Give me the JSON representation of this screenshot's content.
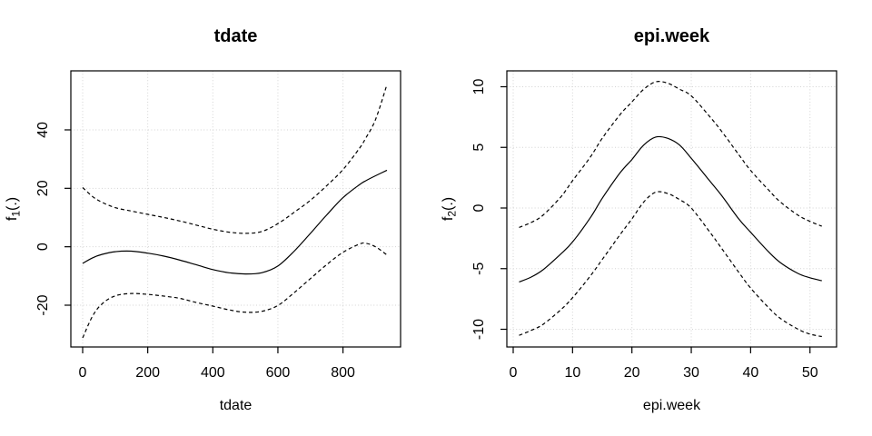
{
  "figure": {
    "background_color": "#ffffff",
    "line_color": "#000000",
    "grid_color": "#d3d3d3",
    "description_panels": 2
  },
  "chart_data": [
    {
      "type": "line",
      "title": "tdate",
      "xlabel": "tdate",
      "ylabel": "f1(.)",
      "ylabel_parts": {
        "f": "f",
        "sub": "1",
        "args": "(.)"
      },
      "xlim": [
        -36.3,
        977
      ],
      "ylim": [
        -34.3,
        60.2
      ],
      "xticks": [
        0,
        200,
        400,
        600,
        800
      ],
      "yticks": [
        -20,
        0,
        20,
        40
      ],
      "grid": true,
      "legend": "none",
      "series": [
        {
          "name": "fit",
          "style": "solid",
          "x": [
            0,
            30,
            60,
            100,
            150,
            200,
            250,
            300,
            350,
            400,
            450,
            500,
            550,
            600,
            650,
            700,
            750,
            800,
            850,
            870,
            900,
            935
          ],
          "y": [
            -5.7,
            -3.8,
            -2.6,
            -1.7,
            -1.5,
            -2.2,
            -3.2,
            -4.6,
            -6.2,
            -7.8,
            -8.9,
            -9.3,
            -8.9,
            -6.6,
            -1.5,
            4.6,
            10.9,
            16.8,
            21.2,
            22.6,
            24.3,
            26.2
          ]
        },
        {
          "name": "ci-upper",
          "style": "dashed",
          "x": [
            0,
            30,
            60,
            100,
            150,
            200,
            250,
            300,
            350,
            400,
            450,
            500,
            550,
            600,
            650,
            700,
            750,
            800,
            850,
            870,
            900,
            935
          ],
          "y": [
            20.3,
            17.2,
            15.2,
            13.4,
            12.2,
            11.1,
            10.0,
            8.8,
            7.4,
            6.0,
            5.0,
            4.6,
            5.2,
            7.9,
            11.8,
            15.9,
            20.9,
            26.4,
            33.6,
            37.2,
            43.5,
            55.5
          ]
        },
        {
          "name": "ci-lower",
          "style": "dashed",
          "x": [
            0,
            30,
            60,
            100,
            150,
            200,
            250,
            300,
            350,
            400,
            450,
            500,
            550,
            600,
            650,
            700,
            750,
            800,
            850,
            870,
            900,
            935
          ],
          "y": [
            -31.2,
            -23.8,
            -19.5,
            -16.8,
            -16.0,
            -16.3,
            -16.9,
            -17.7,
            -19.1,
            -20.3,
            -21.6,
            -22.4,
            -22.1,
            -20.1,
            -15.7,
            -10.9,
            -6.1,
            -1.9,
            0.9,
            1.2,
            0.0,
            -2.8
          ]
        }
      ]
    },
    {
      "type": "line",
      "title": "epi.week",
      "xlabel": "epi.week",
      "ylabel": "f2(.)",
      "ylabel_parts": {
        "f": "f",
        "sub": "2",
        "args": "(.)"
      },
      "xlim": [
        -1.07,
        54.48
      ],
      "ylim": [
        -11.46,
        11.31
      ],
      "xticks": [
        0,
        10,
        20,
        30,
        40,
        50
      ],
      "yticks": [
        -10,
        -5,
        0,
        5,
        10
      ],
      "grid": true,
      "legend": "none",
      "series": [
        {
          "name": "fit",
          "style": "solid",
          "x": [
            1,
            3,
            5,
            8,
            10,
            13,
            15,
            18,
            20,
            22,
            24,
            26,
            28,
            30,
            33,
            35,
            38,
            40,
            43,
            45,
            48,
            50,
            52
          ],
          "y": [
            -6.1,
            -5.7,
            -5.1,
            -3.8,
            -2.8,
            -0.8,
            0.8,
            2.9,
            4.0,
            5.2,
            5.85,
            5.75,
            5.2,
            4.1,
            2.3,
            1.1,
            -0.9,
            -2.0,
            -3.6,
            -4.5,
            -5.4,
            -5.75,
            -6.0
          ]
        },
        {
          "name": "ci-upper",
          "style": "dashed",
          "x": [
            1,
            3,
            5,
            8,
            10,
            13,
            15,
            18,
            20,
            22,
            24,
            26,
            28,
            30,
            33,
            35,
            38,
            40,
            43,
            45,
            48,
            50,
            52
          ],
          "y": [
            -1.6,
            -1.2,
            -0.6,
            0.9,
            2.25,
            4.2,
            5.75,
            7.7,
            8.75,
            9.8,
            10.4,
            10.3,
            9.8,
            9.25,
            7.6,
            6.4,
            4.4,
            3.1,
            1.5,
            0.5,
            -0.6,
            -1.1,
            -1.5
          ]
        },
        {
          "name": "ci-lower",
          "style": "dashed",
          "x": [
            1,
            3,
            5,
            8,
            10,
            13,
            15,
            18,
            20,
            22,
            24,
            26,
            28,
            30,
            33,
            35,
            38,
            40,
            43,
            45,
            48,
            50,
            52
          ],
          "y": [
            -10.5,
            -10.1,
            -9.6,
            -8.4,
            -7.4,
            -5.6,
            -4.25,
            -2.2,
            -0.9,
            0.5,
            1.3,
            1.2,
            0.7,
            0.0,
            -1.9,
            -3.25,
            -5.3,
            -6.6,
            -8.2,
            -9.1,
            -10.0,
            -10.4,
            -10.6
          ]
        }
      ]
    }
  ]
}
